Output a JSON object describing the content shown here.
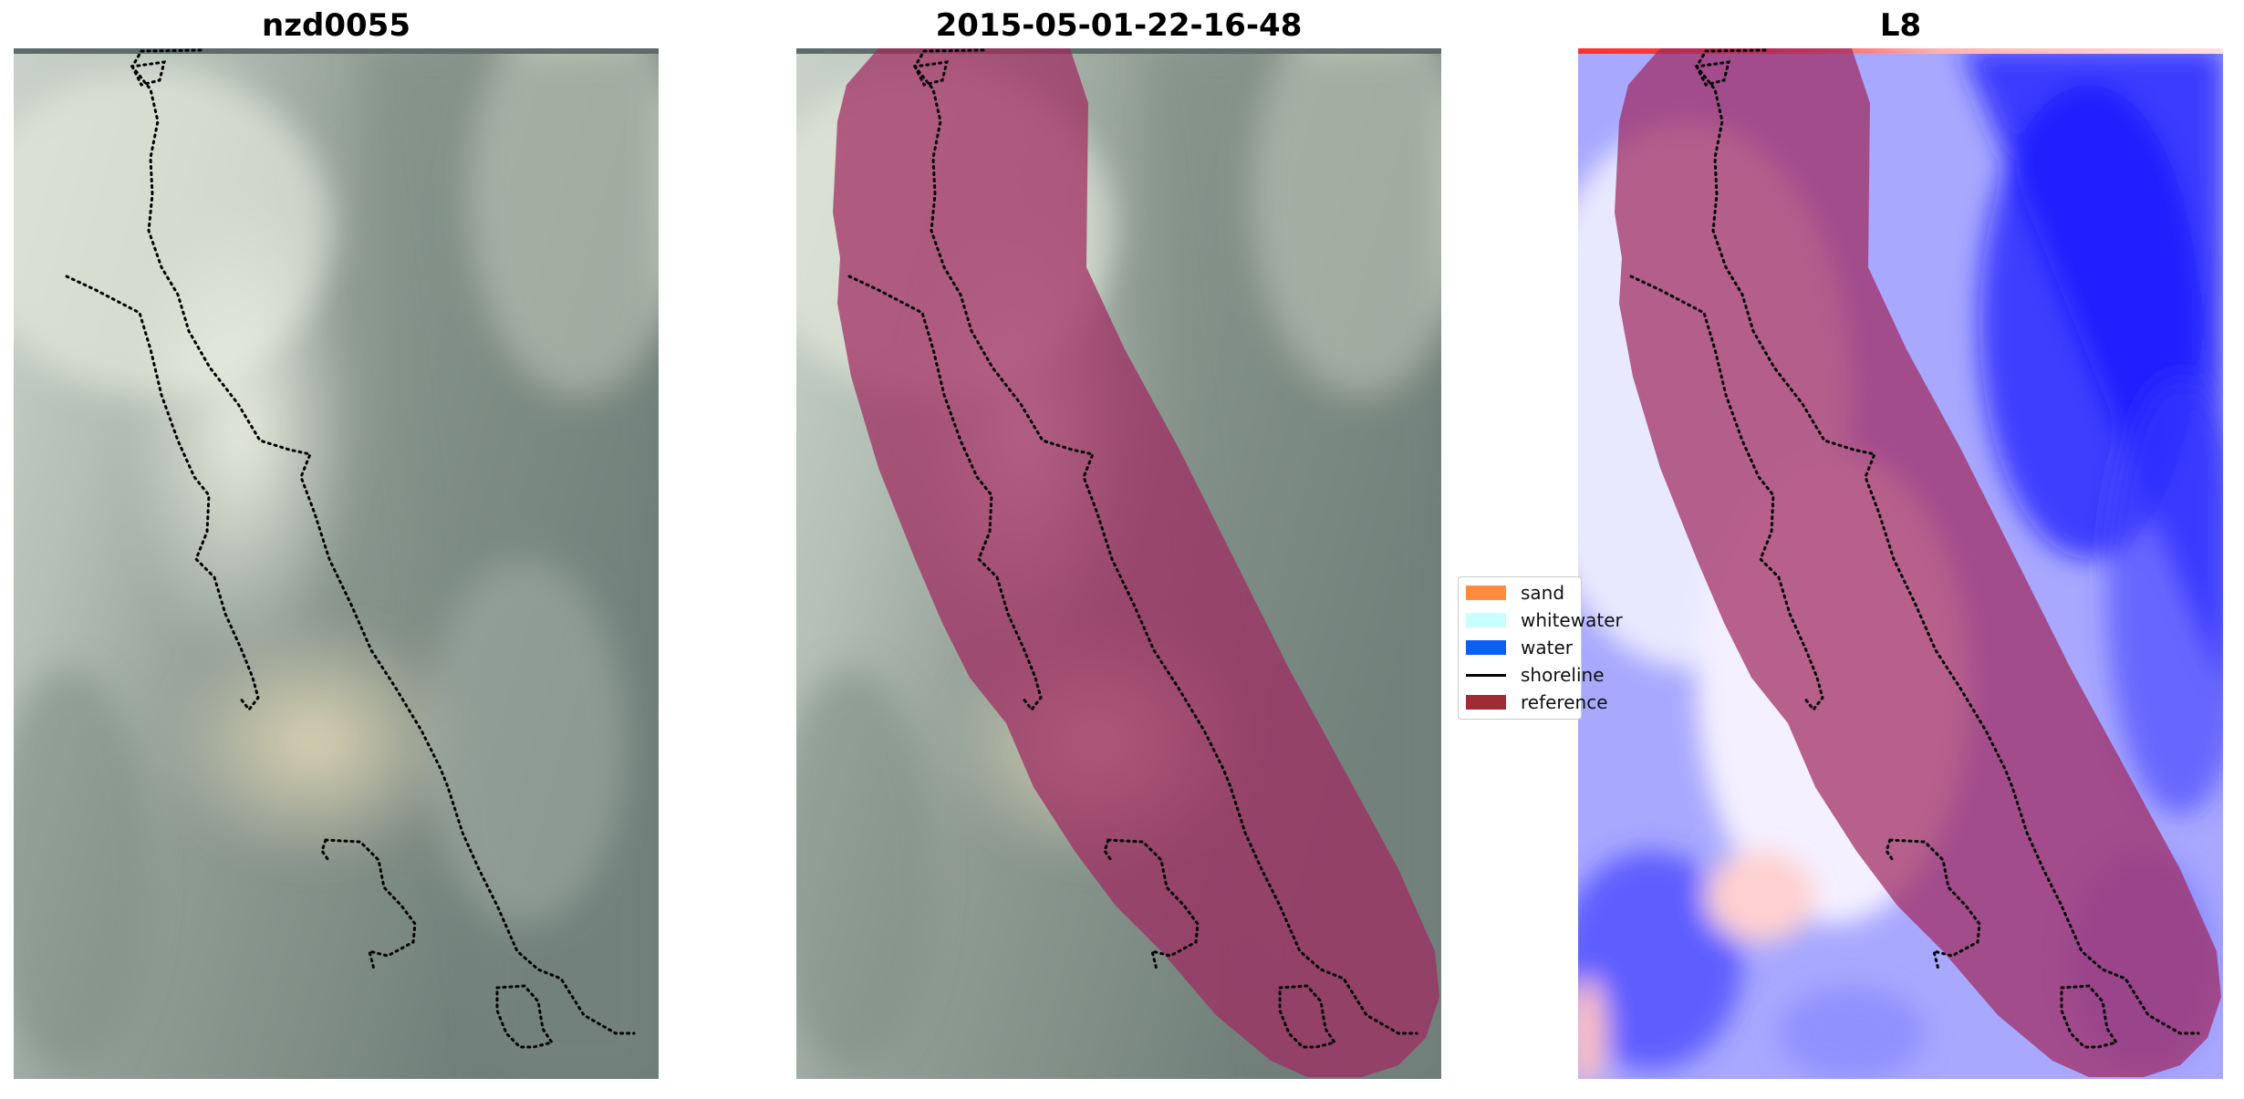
{
  "panels": [
    {
      "title": "nzd0055"
    },
    {
      "title": "2015-05-01-22-16-48"
    },
    {
      "title": "L8"
    }
  ],
  "legend": [
    {
      "label": "sand",
      "color": "#ff8c3c"
    },
    {
      "label": "whitewater",
      "color": "#c8ffff"
    },
    {
      "label": "water",
      "color": "#0a5ff5"
    },
    {
      "label": "shoreline",
      "color": "#000000"
    },
    {
      "label": "reference",
      "color": "#9e2b35"
    }
  ],
  "colors": {
    "buffer_overlay": "#a02860",
    "shoreline_dots": "#000000",
    "index_low": "#0000ff",
    "index_high": "#ff0000"
  }
}
